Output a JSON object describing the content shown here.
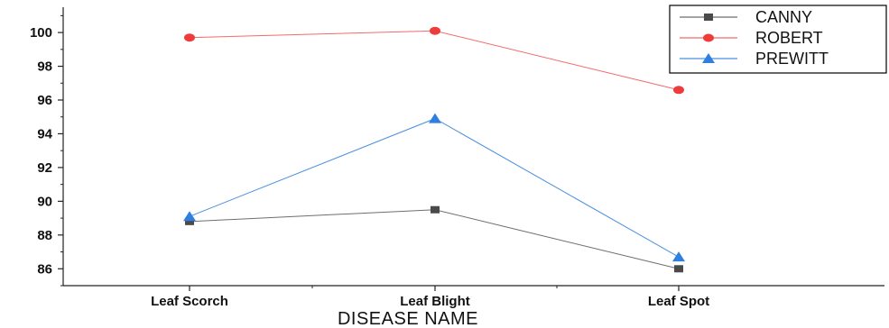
{
  "chart_data": {
    "type": "line",
    "title": "",
    "xlabel": "DISEASE NAME",
    "ylabel": "",
    "categories": [
      "Leaf Scorch",
      "Leaf Blight",
      "Leaf Spot"
    ],
    "ylim": [
      85,
      101.5
    ],
    "yticks": [
      86,
      88,
      90,
      92,
      94,
      96,
      98,
      100
    ],
    "grid": false,
    "legend_position": "top-right",
    "series": [
      {
        "name": "CANNY",
        "values": [
          88.8,
          89.5,
          86.0
        ],
        "color": "#6e6e6e",
        "marker": "square",
        "marker_color": "#4a4a4a"
      },
      {
        "name": "ROBERT",
        "values": [
          99.7,
          100.1,
          96.6
        ],
        "color": "#f26b6b",
        "marker": "circle",
        "marker_color": "#ee3b3b"
      },
      {
        "name": "PREWITT",
        "values": [
          89.1,
          94.9,
          86.7
        ],
        "color": "#4a8fe0",
        "marker": "triangle",
        "marker_color": "#2f7fe0"
      }
    ]
  }
}
